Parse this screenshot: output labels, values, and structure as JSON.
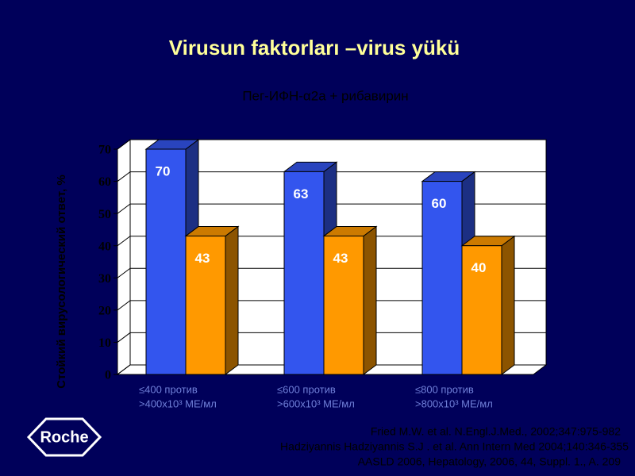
{
  "chart_data": {
    "type": "bar3d",
    "title": "Virusun faktorları –virus yükü",
    "subtitle": "Пег-ИФН-α2а + рибавирин",
    "y_label": "Стойкий вирусологический ответ, %",
    "categories": [
      [
        "≤400 против",
        ">400x10³ МЕ/мл"
      ],
      [
        "≤600 против",
        ">600x10³ МЕ/мл"
      ],
      [
        "≤800 против",
        ">800x10³ МЕ/мл"
      ]
    ],
    "series": [
      {
        "color": "#3355ee",
        "values": [
          70,
          63,
          60
        ]
      },
      {
        "color": "#ff9900",
        "values": [
          43,
          43,
          40
        ]
      }
    ],
    "ylim": [
      0,
      70
    ],
    "yticks": [
      0,
      10,
      20,
      30,
      40,
      50,
      60,
      70
    ],
    "grid": true
  },
  "logo": "Roche",
  "references": [
    "Fried M.W. et al. N.Engl.J.Med., 2002;347:975-982",
    "Hadziyannis Hadziyannis S.J . et al. Ann Intern Med 2004;140:346-355",
    "AASLD 2006, Hepatology, 2006, 44, Suppl. 1., A. 209"
  ]
}
